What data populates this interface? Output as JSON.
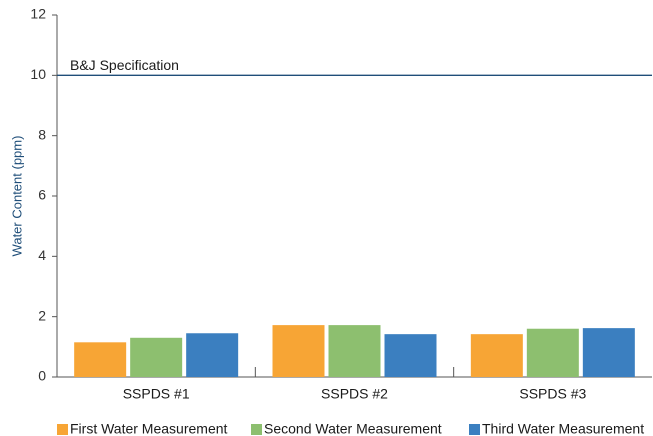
{
  "chart_data": {
    "type": "bar",
    "y_label": "Water Content (ppm)",
    "categories": [
      "SSPDS #1",
      "SSPDS #2",
      "SSPDS #3"
    ],
    "series": [
      {
        "name": "First Water Measurement",
        "color": "#f7a535",
        "values": [
          1.15,
          1.72,
          1.42
        ]
      },
      {
        "name": "Second Water Measurement",
        "color": "#8dbf6f",
        "values": [
          1.3,
          1.72,
          1.6
        ]
      },
      {
        "name": "Third Water Measurement",
        "color": "#3b7fc0",
        "values": [
          1.45,
          1.42,
          1.62
        ]
      }
    ],
    "reference_line": {
      "value": 10,
      "label": "B&J Specification",
      "color": "#1f4e79"
    },
    "ylim": [
      0,
      12
    ],
    "yticks": [
      0,
      2,
      4,
      6,
      8,
      10,
      12
    ],
    "grid": false,
    "legend": "bottom"
  }
}
